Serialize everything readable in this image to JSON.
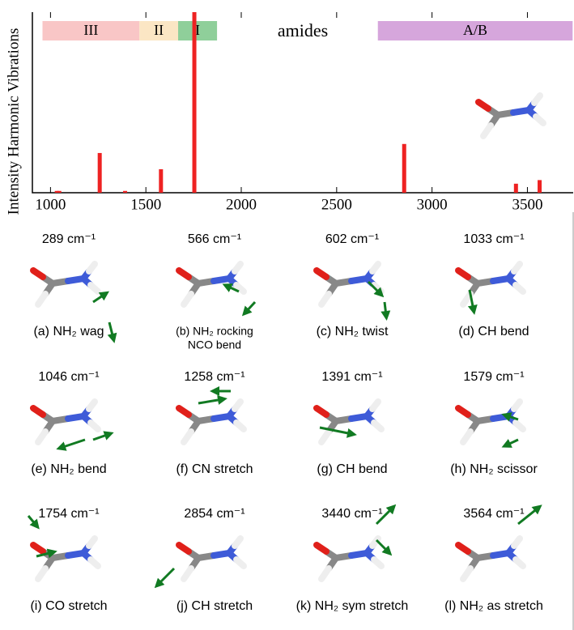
{
  "chart_data": {
    "type": "bar",
    "y_label": "Intensity Harmonic Vibrations",
    "x": [
      1033,
      1046,
      1258,
      1391,
      1579,
      1754,
      2854,
      3440,
      3564
    ],
    "values": [
      1,
      1,
      22,
      1,
      13,
      100,
      27,
      5,
      7
    ],
    "color": "#ee2222",
    "xlim": [
      905,
      3740
    ],
    "xticks": [
      1000,
      1500,
      2000,
      2500,
      3000,
      3500
    ],
    "ylim": [
      0,
      100
    ],
    "regions": [
      {
        "label": "III",
        "start": 958,
        "end": 1466,
        "color": "#f9c6c6"
      },
      {
        "label": "II",
        "start": 1466,
        "end": 1669,
        "color": "#fbe6c4"
      },
      {
        "label": "I",
        "start": 1669,
        "end": 1873,
        "color": "#8fcf9a"
      },
      {
        "label": "A/B",
        "start": 2716,
        "end": 3737,
        "color": "#d6a6dc"
      }
    ],
    "annotation": "amides"
  },
  "panels": [
    {
      "frequency": "289 cm⁻¹",
      "caption": "(a) NH₂ wag"
    },
    {
      "frequency": "566 cm⁻¹",
      "caption": "(b) NH₂ rocking",
      "caption2": "NCO bend"
    },
    {
      "frequency": "602 cm⁻¹",
      "caption": "(c) NH₂ twist"
    },
    {
      "frequency": "1033 cm⁻¹",
      "caption": "(d) CH bend"
    },
    {
      "frequency": "1046 cm⁻¹",
      "caption": "(e) NH₂ bend"
    },
    {
      "frequency": "1258 cm⁻¹",
      "caption": "(f) CN stretch"
    },
    {
      "frequency": "1391 cm⁻¹",
      "caption": "(g) CH bend"
    },
    {
      "frequency": "1579 cm⁻¹",
      "caption": "(h) NH₂ scissor"
    },
    {
      "frequency": "1754 cm⁻¹",
      "caption": "(i) CO stretch"
    },
    {
      "frequency": "2854 cm⁻¹",
      "caption": "(j) CH stretch"
    },
    {
      "frequency": "3440 cm⁻¹",
      "caption": "(k) NH₂ sym stretch"
    },
    {
      "frequency": "3564 cm⁻¹",
      "caption": "(l) NH₂ as stretch"
    }
  ]
}
